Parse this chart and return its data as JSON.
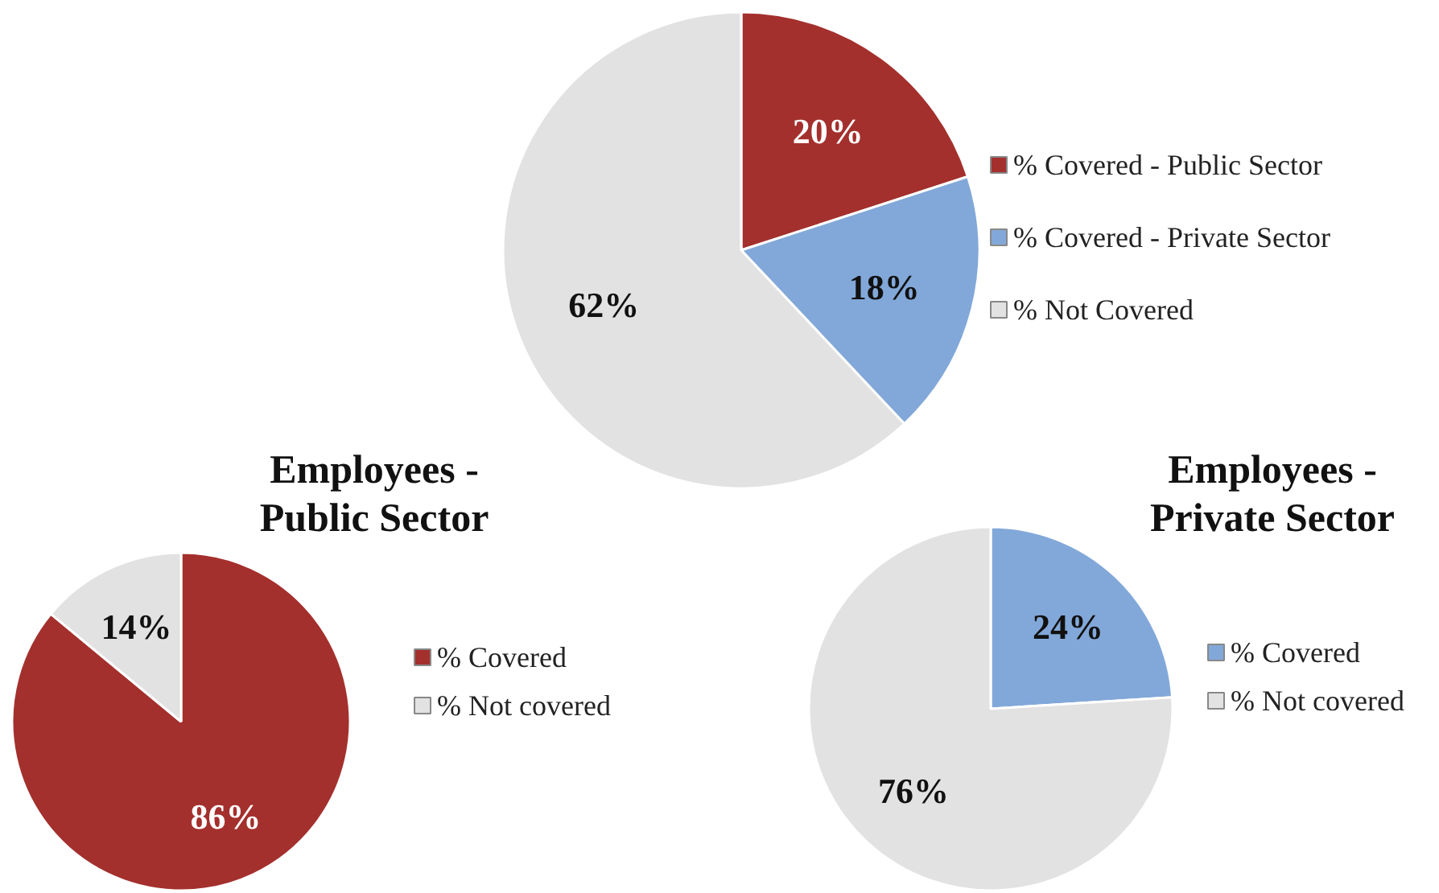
{
  "chart_data": [
    {
      "type": "pie",
      "categories": [
        "% Covered - Public Sector",
        "% Covered - Private Sector",
        "% Not Covered"
      ],
      "values": [
        20,
        18,
        62
      ],
      "colors": [
        "#a3302d",
        "#82a8d9",
        "#e2e2e2"
      ],
      "value_labels": [
        "20%",
        "18%",
        "62%"
      ],
      "legend": "right"
    },
    {
      "type": "pie",
      "title": "Employees -\nPublic Sector",
      "categories": [
        "% Covered",
        "% Not covered"
      ],
      "values": [
        86,
        14
      ],
      "colors": [
        "#a3302d",
        "#e2e2e2"
      ],
      "value_labels": [
        "86%",
        "14%"
      ],
      "legend": "right"
    },
    {
      "type": "pie",
      "title": "Employees -\nPrivate Sector",
      "categories": [
        "% Covered",
        "% Not covered"
      ],
      "values": [
        24,
        76
      ],
      "colors": [
        "#82a8d9",
        "#e2e2e2"
      ],
      "value_labels": [
        "24%",
        "76%"
      ],
      "legend": "right"
    }
  ]
}
